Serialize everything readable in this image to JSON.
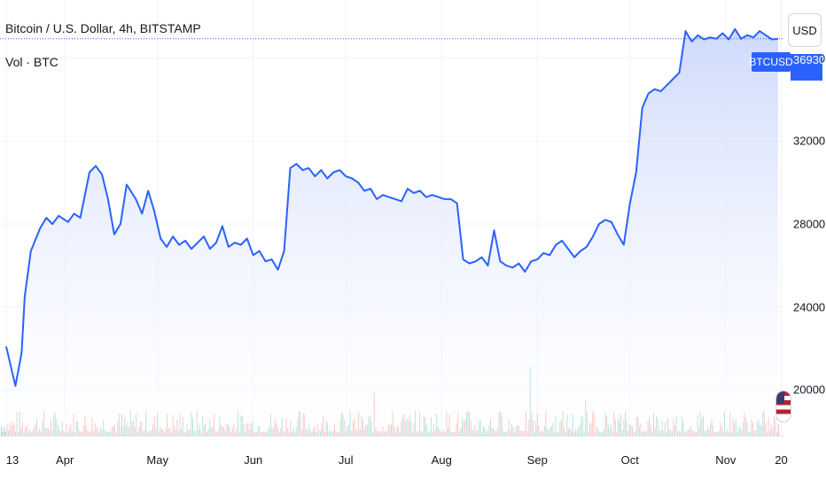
{
  "header": {
    "title": "Bitcoin / U.S. Dollar, 4h, BITSTAMP",
    "volume_label": "Vol · BTC"
  },
  "currency_button": "USD",
  "price_tag": "BTCUSD",
  "last_price_label": "36930",
  "colors": {
    "line": "#2962ff",
    "area_top": "#c9d6fb",
    "area_bottom": "#ffffff",
    "volume_up": "#26a69a",
    "volume_down": "#ef5350",
    "grid": "#f0f3fa",
    "price_line": "#2962ff"
  },
  "chart_data": {
    "type": "area",
    "title": "Bitcoin / U.S. Dollar, 4h, BITSTAMP",
    "symbol": "BTCUSD",
    "exchange": "BITSTAMP",
    "interval": "4h",
    "currency": "USD",
    "ylim": [
      17800,
      38800
    ],
    "y_ticks": [
      "20000",
      "24000",
      "28000",
      "32000",
      "36000"
    ],
    "x_ticks": [
      "13",
      "Apr",
      "May",
      "Jun",
      "Jul",
      "Aug",
      "Sep",
      "Oct",
      "Nov",
      "20"
    ],
    "x_tick_positions": [
      0,
      19,
      49,
      80,
      110,
      141,
      172,
      202,
      233,
      251
    ],
    "xlim": [
      -2,
      252
    ],
    "last_value": 36930,
    "grid": true,
    "legend": "top-left",
    "series": [
      {
        "name": "BTCUSD",
        "x": [
          0,
          3,
          5,
          6,
          8,
          11,
          13,
          15,
          17,
          20,
          22,
          24,
          27,
          29,
          31,
          33,
          35,
          37,
          39,
          42,
          44,
          46,
          48,
          50,
          52,
          54,
          56,
          58,
          60,
          62,
          64,
          66,
          68,
          70,
          72,
          74,
          76,
          78,
          80,
          82,
          84,
          86,
          88,
          90,
          92,
          94,
          96,
          98,
          100,
          102,
          104,
          106,
          108,
          110,
          112,
          114,
          116,
          118,
          120,
          122,
          124,
          126,
          128,
          130,
          132,
          134,
          136,
          138,
          140,
          142,
          144,
          146,
          148,
          150,
          152,
          154,
          156,
          158,
          160,
          162,
          164,
          166,
          168,
          170,
          172,
          174,
          176,
          178,
          180,
          182,
          184,
          186,
          188,
          190,
          192,
          194,
          196,
          198,
          200,
          202,
          204,
          206,
          208,
          210,
          212,
          214,
          216,
          218,
          220,
          222,
          224,
          226,
          228,
          230,
          232,
          234,
          236,
          238,
          240,
          242,
          244,
          246,
          248,
          250
        ],
        "values": [
          22100,
          20200,
          21800,
          24500,
          26700,
          27800,
          28300,
          28000,
          28400,
          28100,
          28500,
          28300,
          30500,
          30800,
          30400,
          29200,
          27500,
          28000,
          29900,
          29200,
          28500,
          29600,
          28600,
          27300,
          26900,
          27400,
          27000,
          27200,
          26800,
          27100,
          27400,
          26800,
          27100,
          27900,
          26900,
          27100,
          27000,
          27300,
          26500,
          26700,
          26200,
          26300,
          25800,
          26700,
          30700,
          30900,
          30600,
          30700,
          30300,
          30600,
          30200,
          30500,
          30600,
          30300,
          30200,
          30000,
          29600,
          29700,
          29200,
          29400,
          29300,
          29200,
          29100,
          29700,
          29500,
          29600,
          29300,
          29400,
          29300,
          29200,
          29200,
          29000,
          26300,
          26100,
          26200,
          26400,
          26000,
          27700,
          26200,
          26000,
          25900,
          26100,
          25700,
          26200,
          26300,
          26600,
          26500,
          27000,
          27200,
          26800,
          26400,
          26700,
          26900,
          27400,
          28000,
          28200,
          28100,
          27500,
          27000,
          29000,
          30500,
          33600,
          34300,
          34500,
          34400,
          34700,
          35000,
          35300,
          37300,
          36800,
          37100,
          36900,
          37000,
          36930,
          37200,
          36900,
          37400,
          36930,
          37100,
          37000,
          37300,
          37100,
          36900,
          36930
        ]
      }
    ]
  }
}
